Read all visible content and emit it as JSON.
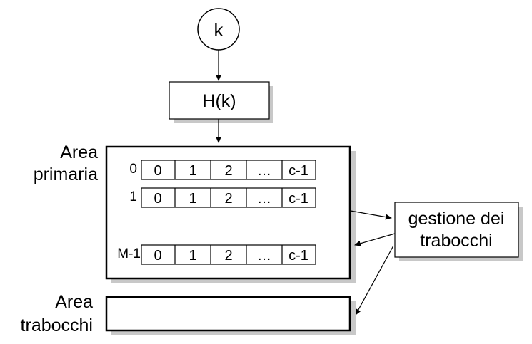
{
  "key": {
    "label": "k"
  },
  "hash": {
    "label": "H(k)"
  },
  "primary_area": {
    "label_line1": "Area",
    "label_line2": "primaria",
    "rows": [
      {
        "index": "0",
        "cells": [
          "0",
          "1",
          "2",
          "…",
          "c-1"
        ]
      },
      {
        "index": "1",
        "cells": [
          "0",
          "1",
          "2",
          "…",
          "c-1"
        ]
      },
      {
        "index": "M-1",
        "cells": [
          "0",
          "1",
          "2",
          "…",
          "c-1"
        ]
      }
    ]
  },
  "overflow_manager": {
    "label_line1": "gestione dei",
    "label_line2": "trabocchi"
  },
  "overflow_area": {
    "label_line1": "Area",
    "label_line2": "trabocchi"
  },
  "colors": {
    "stroke": "#000000",
    "shadow": "#c8c8c8",
    "background": "#ffffff"
  }
}
